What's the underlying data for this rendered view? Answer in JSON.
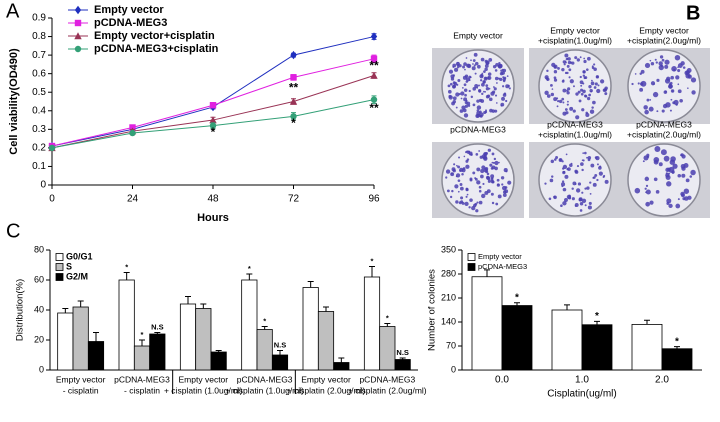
{
  "panel_labels": [
    "A",
    "B",
    "C"
  ],
  "colony_images": [
    {
      "lines": [
        "Empty vector"
      ]
    },
    {
      "lines": [
        "Empty vector",
        "+cisplatin(1.0ug/ml)"
      ]
    },
    {
      "lines": [
        "Empty vector",
        "+cisplatin(2.0ug/ml)"
      ]
    },
    {
      "lines": [
        "pCDNA-MEG3"
      ]
    },
    {
      "lines": [
        "pCDNA-MEG3",
        "+cisplatin(1.0ug/ml)"
      ]
    },
    {
      "lines": [
        "pCDNA-MEG3",
        "+cisplatin(2.0ug/ml)"
      ]
    }
  ],
  "chart_data": [
    {
      "type": "line",
      "x_label": "Hours",
      "y_label": "Cell viability(OD490)",
      "x": [
        0,
        24,
        48,
        72,
        96
      ],
      "xlim": [
        0,
        96
      ],
      "xticks": [
        0,
        24,
        48,
        72,
        96
      ],
      "ylim": [
        0,
        0.9
      ],
      "yticks": [
        0,
        0.1,
        0.2,
        0.3,
        0.4,
        0.5,
        0.6,
        0.7,
        0.8,
        0.9
      ],
      "series": [
        {
          "name": "Empty vector",
          "color": "#1f2fbf",
          "marker": "diamond",
          "values": [
            0.21,
            0.3,
            0.42,
            0.7,
            0.8
          ],
          "errors": [
            0.01,
            0.01,
            0.01,
            0.01,
            0.015
          ]
        },
        {
          "name": "pCDNA-MEG3",
          "color": "#e020e0",
          "marker": "square",
          "values": [
            0.21,
            0.31,
            0.43,
            0.58,
            0.68
          ],
          "errors": [
            0.01,
            0.01,
            0.01,
            0.015,
            0.02
          ]
        },
        {
          "name": "Empty vector+cisplatin",
          "color": "#993355",
          "marker": "triangle",
          "values": [
            0.2,
            0.29,
            0.35,
            0.45,
            0.59
          ],
          "errors": [
            0.01,
            0.01,
            0.015,
            0.015,
            0.015
          ]
        },
        {
          "name": "pCDNA-MEG3+cisplatin",
          "color": "#33a077",
          "marker": "circle",
          "values": [
            0.2,
            0.28,
            0.32,
            0.37,
            0.46
          ],
          "errors": [
            0.01,
            0.01,
            0.015,
            0.02,
            0.02
          ]
        }
      ],
      "annotations": [
        {
          "text": "*",
          "x": 48,
          "y": 0.28
        },
        {
          "text": "**",
          "x": 72,
          "y": 0.52
        },
        {
          "text": "*",
          "x": 72,
          "y": 0.33
        },
        {
          "text": "**",
          "x": 96,
          "y": 0.64
        },
        {
          "text": "**",
          "x": 96,
          "y": 0.41
        }
      ]
    },
    {
      "type": "bar",
      "y_label": "Distribution(%)",
      "categories": [
        [
          "Empty vector",
          "- cisplatin"
        ],
        [
          "pCDNA-MEG3",
          "- cisplatin"
        ],
        [
          "Empty vector",
          "+ cisplatin (1.0ug/ml)"
        ],
        [
          "pCDNA-MEG3",
          "+ cisplatin (1.0ug/ml)"
        ],
        [
          "Empty vector",
          "+ cisplatin (2.0ug/ml)"
        ],
        [
          "pCDNA-MEG3",
          "+ cisplatin (2.0ug/ml)"
        ]
      ],
      "ylim": [
        0,
        80
      ],
      "yticks": [
        0,
        20,
        40,
        60,
        80
      ],
      "series": [
        {
          "name": "G0/G1",
          "color": "#ffffff",
          "values": [
            38,
            60,
            44,
            60,
            55,
            62
          ],
          "errors": [
            3,
            5,
            5,
            4,
            4,
            7
          ]
        },
        {
          "name": "S",
          "color": "#bfbfbf",
          "values": [
            42,
            16,
            41,
            27,
            39,
            29
          ],
          "errors": [
            4,
            4,
            3,
            2,
            3,
            2
          ]
        },
        {
          "name": "G2/M",
          "color": "#000000",
          "values": [
            19,
            24,
            12,
            10,
            5,
            7
          ],
          "errors": [
            6,
            1,
            1,
            3,
            3,
            1
          ]
        }
      ],
      "annotations": [
        {
          "text": "*",
          "series": 0,
          "index": 1
        },
        {
          "text": "*",
          "series": 1,
          "index": 1
        },
        {
          "text": "N.S",
          "series": 2,
          "index": 1
        },
        {
          "text": "*",
          "series": 0,
          "index": 3
        },
        {
          "text": "*",
          "series": 1,
          "index": 3
        },
        {
          "text": "N.S",
          "series": 2,
          "index": 3
        },
        {
          "text": "*",
          "series": 0,
          "index": 5
        },
        {
          "text": "*",
          "series": 1,
          "index": 5
        },
        {
          "text": "N.S",
          "series": 2,
          "index": 5
        }
      ]
    },
    {
      "type": "bar",
      "x_label": "Cisplatin(ug/ml)",
      "y_label": "Number of colonies",
      "categories": [
        [
          "0.0"
        ],
        [
          "1.0"
        ],
        [
          "2.0"
        ]
      ],
      "ylim": [
        0,
        350
      ],
      "yticks": [
        0,
        70,
        140,
        210,
        280,
        350
      ],
      "series": [
        {
          "name": "Empty vector",
          "color": "#ffffff",
          "values": [
            272,
            175,
            133
          ],
          "errors": [
            20,
            15,
            12
          ]
        },
        {
          "name": "pCDNA-MEG3",
          "color": "#000000",
          "values": [
            188,
            132,
            62
          ],
          "errors": [
            8,
            10,
            6
          ]
        }
      ],
      "annotations": [
        {
          "text": "*",
          "series": 1,
          "index": 0
        },
        {
          "text": "*",
          "series": 1,
          "index": 1
        },
        {
          "text": "*",
          "series": 1,
          "index": 2
        }
      ]
    }
  ]
}
